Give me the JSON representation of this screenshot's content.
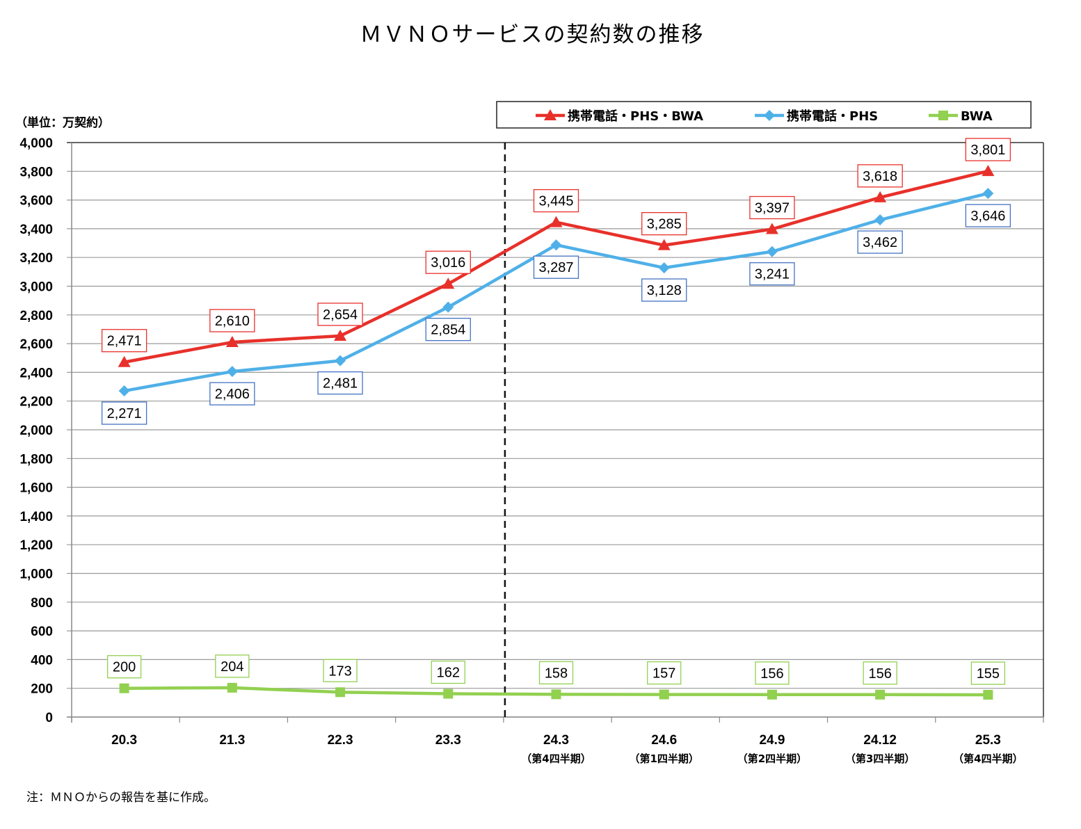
{
  "chart_data": {
    "type": "line",
    "title": "ＭＶＮＯサービスの契約数の推移",
    "unit_label": "（単位：万契約）",
    "xlabel": "",
    "ylabel": "",
    "ylim": [
      0,
      4000
    ],
    "ytick_step": 200,
    "yticks": [
      "0",
      "200",
      "400",
      "600",
      "800",
      "1,000",
      "1,200",
      "1,400",
      "1,600",
      "1,800",
      "2,000",
      "2,200",
      "2,400",
      "2,600",
      "2,800",
      "3,000",
      "3,200",
      "3,400",
      "3,600",
      "3,800",
      "4,000"
    ],
    "grid": true,
    "categories": [
      "20.3",
      "21.3",
      "22.3",
      "23.3",
      "24.3",
      "24.6",
      "24.9",
      "24.12",
      "25.3"
    ],
    "category_sublabels": [
      "",
      "",
      "",
      "",
      "（第4四半期）",
      "（第1四半期）",
      "（第2四半期）",
      "（第3四半期）",
      "（第4四半期）"
    ],
    "divider_after_category_index": 3,
    "legend_position": "top-right",
    "series": [
      {
        "name": "携帯電話・PHS・BWA",
        "color": "#e8302a",
        "marker": "triangle",
        "label_position": "above",
        "values": [
          2471,
          2610,
          2654,
          3016,
          3445,
          3285,
          3397,
          3618,
          3801
        ],
        "labels": [
          "2,471",
          "2,610",
          "2,654",
          "3,016",
          "3,445",
          "3,285",
          "3,397",
          "3,618",
          "3,801"
        ]
      },
      {
        "name": "携帯電話・PHS",
        "color": "#4fb0e8",
        "label_border": "#4472c4",
        "marker": "diamond",
        "label_position": "below",
        "values": [
          2271,
          2406,
          2481,
          2854,
          3287,
          3128,
          3241,
          3462,
          3646
        ],
        "labels": [
          "2,271",
          "2,406",
          "2,481",
          "2,854",
          "3,287",
          "3,128",
          "3,241",
          "3,462",
          "3,646"
        ]
      },
      {
        "name": "BWA",
        "color": "#92d050",
        "marker": "square",
        "label_position": "above",
        "values": [
          200,
          204,
          173,
          162,
          158,
          157,
          156,
          156,
          155
        ],
        "labels": [
          "200",
          "204",
          "173",
          "162",
          "158",
          "157",
          "156",
          "156",
          "155"
        ]
      }
    ],
    "note": "注：ＭＮＯからの報告を基に作成。"
  }
}
